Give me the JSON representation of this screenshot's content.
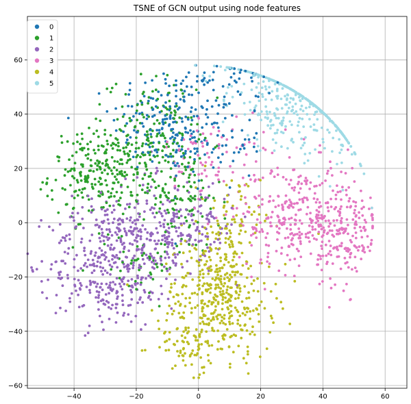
{
  "chart_data": {
    "type": "scatter",
    "title": "TSNE of GCN output using node features",
    "xlabel": "",
    "ylabel": "",
    "xlim": [
      -55,
      67
    ],
    "ylim": [
      -61,
      76
    ],
    "xticks": [
      -40,
      -20,
      0,
      20,
      40,
      60
    ],
    "yticks": [
      -60,
      -40,
      -20,
      0,
      20,
      40,
      60
    ],
    "grid": true,
    "legend_position": "top-left",
    "series": [
      {
        "name": "0",
        "color": "#1f77b4",
        "clusters": [
          {
            "cx": -10,
            "cy": 38,
            "sx": 9,
            "sy": 10,
            "n": 170
          },
          {
            "cx": 5,
            "cy": 30,
            "sx": 8,
            "sy": 9,
            "n": 80
          },
          {
            "cx": 12,
            "cy": 55,
            "sx": 6,
            "sy": 8,
            "n": 40
          }
        ]
      },
      {
        "name": "1",
        "color": "#2ca02c",
        "clusters": [
          {
            "cx": -32,
            "cy": 18,
            "sx": 8,
            "sy": 8,
            "n": 230
          },
          {
            "cx": -15,
            "cy": 30,
            "sx": 7,
            "sy": 12,
            "n": 190
          },
          {
            "cx": -5,
            "cy": 8,
            "sx": 6,
            "sy": 10,
            "n": 100
          },
          {
            "cx": -20,
            "cy": -15,
            "sx": 8,
            "sy": 6,
            "n": 40
          }
        ]
      },
      {
        "name": "2",
        "color": "#9467bd",
        "clusters": [
          {
            "cx": -30,
            "cy": -15,
            "sx": 9,
            "sy": 12,
            "n": 320
          },
          {
            "cx": -15,
            "cy": -5,
            "sx": 8,
            "sy": 10,
            "n": 220
          },
          {
            "cx": 0,
            "cy": 0,
            "sx": 6,
            "sy": 8,
            "n": 80
          }
        ]
      },
      {
        "name": "3",
        "color": "#e377c2",
        "clusters": [
          {
            "cx": 33,
            "cy": 2,
            "sx": 10,
            "sy": 10,
            "n": 340
          },
          {
            "cx": 48,
            "cy": -5,
            "sx": 5,
            "sy": 10,
            "n": 120
          },
          {
            "cx": 5,
            "cy": 25,
            "sx": 8,
            "sy": 8,
            "n": 80
          }
        ]
      },
      {
        "name": "4",
        "color": "#bcbd22",
        "clusters": [
          {
            "cx": 6,
            "cy": -28,
            "sx": 9,
            "sy": 11,
            "n": 390
          },
          {
            "cx": 10,
            "cy": -3,
            "sx": 5,
            "sy": 10,
            "n": 100
          },
          {
            "cx": -2,
            "cy": -45,
            "sx": 6,
            "sy": 5,
            "n": 60
          }
        ]
      },
      {
        "name": "5",
        "color": "#9edae5",
        "clusters": [
          {
            "cx": 30,
            "cy": 45,
            "sx": 10,
            "sy": 9,
            "n": 260
          },
          {
            "cx": 48,
            "cy": 40,
            "sx": 7,
            "sy": 10,
            "n": 140
          },
          {
            "cx": 20,
            "cy": 60,
            "sx": 8,
            "sy": 6,
            "n": 60
          }
        ]
      }
    ]
  }
}
